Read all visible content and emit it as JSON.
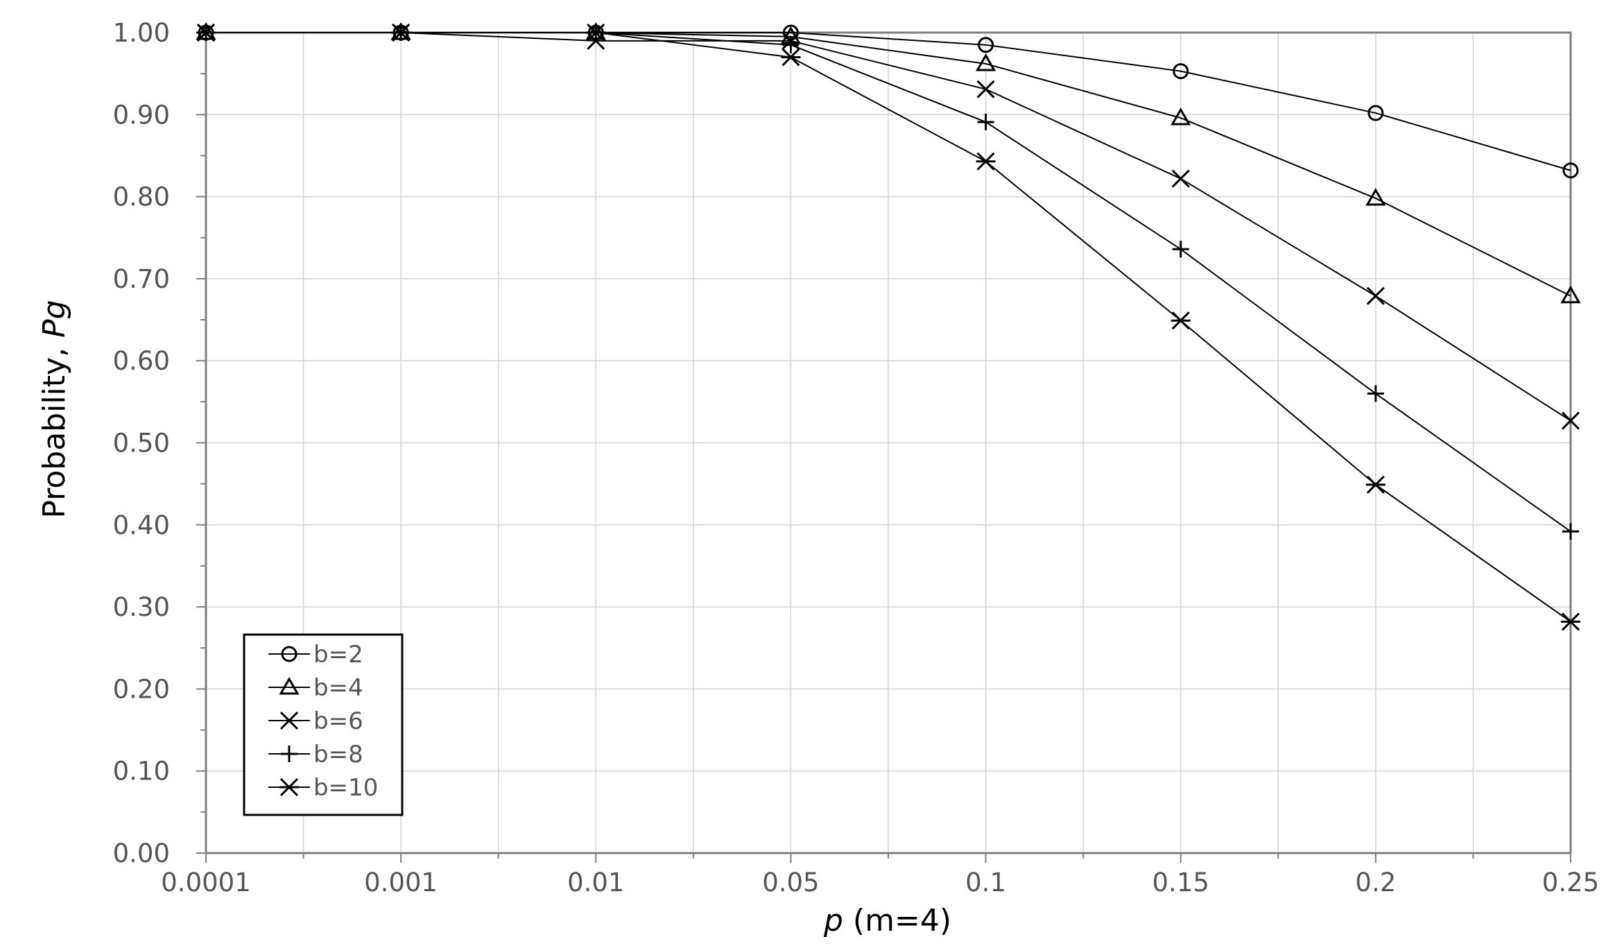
{
  "chart_data": {
    "type": "line",
    "x_categories": [
      "0.0001",
      "0.001",
      "0.01",
      "0.05",
      "0.1",
      "0.15",
      "0.2",
      "0.25"
    ],
    "y_ticks": [
      "0.00",
      "0.10",
      "0.20",
      "0.30",
      "0.40",
      "0.50",
      "0.60",
      "0.70",
      "0.80",
      "0.90",
      "1.00"
    ],
    "ylim": [
      0,
      1
    ],
    "xlabel_italic": "p",
    "xlabel_rest": " (m=4)",
    "ylabel_plain": "Probability, ",
    "ylabel_italic": "Pg",
    "grid": true,
    "legend_position": "bottom-left",
    "series": [
      {
        "name": "b=2",
        "marker": "circle",
        "values": [
          1.0,
          1.0,
          1.0,
          1.0,
          0.985,
          0.953,
          0.902,
          0.832
        ]
      },
      {
        "name": "b=4",
        "marker": "triangle",
        "values": [
          1.0,
          1.0,
          1.0,
          0.995,
          0.962,
          0.896,
          0.798,
          0.679
        ]
      },
      {
        "name": "b=6",
        "marker": "x",
        "values": [
          1.0,
          1.0,
          0.99,
          0.99,
          0.931,
          0.822,
          0.679,
          0.527
        ]
      },
      {
        "name": "b=8",
        "marker": "plus",
        "values": [
          1.0,
          1.0,
          1.0,
          0.985,
          0.891,
          0.736,
          0.56,
          0.392
        ]
      },
      {
        "name": "b=10",
        "marker": "asterisk",
        "values": [
          1.0,
          1.0,
          1.0,
          0.97,
          0.843,
          0.649,
          0.449,
          0.282
        ]
      }
    ]
  }
}
